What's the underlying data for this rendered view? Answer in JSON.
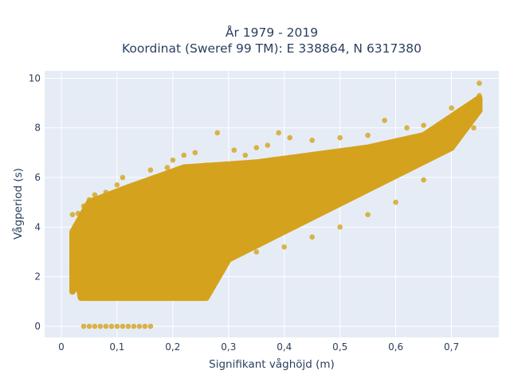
{
  "chart_data": {
    "type": "scatter",
    "title": [
      "År 1979 - 2019",
      "Koordinat (Sweref 99 TM): E 338864, N 6317380"
    ],
    "xlabel": "Signifikant våghöjd (m)",
    "ylabel": "Vågperiod (s)",
    "xlim": [
      -0.03,
      0.785
    ],
    "ylim": [
      -0.45,
      10.3
    ],
    "xticks": [
      0,
      0.1,
      0.2,
      0.3,
      0.4,
      0.5,
      0.6,
      0.7
    ],
    "xtick_labels": [
      "0",
      "0,1",
      "0,2",
      "0,3",
      "0,4",
      "0,5",
      "0,6",
      "0,7"
    ],
    "yticks": [
      0,
      2,
      4,
      6,
      8,
      10
    ],
    "ytick_labels": [
      "0",
      "2",
      "4",
      "6",
      "8",
      "10"
    ],
    "grid": true,
    "legend": "none",
    "series": [
      {
        "color": "#d4a21c",
        "points": [
          [
            0.04,
            0
          ],
          [
            0.05,
            0
          ],
          [
            0.06,
            0
          ],
          [
            0.07,
            0
          ],
          [
            0.08,
            0
          ],
          [
            0.09,
            0
          ],
          [
            0.1,
            0
          ],
          [
            0.11,
            0
          ],
          [
            0.12,
            0
          ],
          [
            0.13,
            0
          ],
          [
            0.14,
            0
          ],
          [
            0.15,
            0
          ],
          [
            0.16,
            0
          ],
          [
            0.02,
            4.5
          ],
          [
            0.03,
            4.55
          ],
          [
            0.04,
            4.85
          ],
          [
            0.05,
            5.1
          ],
          [
            0.06,
            5.3
          ],
          [
            0.08,
            5.4
          ],
          [
            0.1,
            5.7
          ],
          [
            0.11,
            6.0
          ],
          [
            0.16,
            6.3
          ],
          [
            0.19,
            6.4
          ],
          [
            0.2,
            6.7
          ],
          [
            0.22,
            6.9
          ],
          [
            0.24,
            7.0
          ],
          [
            0.26,
            6.5
          ],
          [
            0.28,
            7.8
          ],
          [
            0.31,
            7.1
          ],
          [
            0.33,
            6.9
          ],
          [
            0.35,
            7.2
          ],
          [
            0.37,
            7.3
          ],
          [
            0.39,
            7.8
          ],
          [
            0.41,
            7.6
          ],
          [
            0.45,
            7.5
          ],
          [
            0.5,
            7.6
          ],
          [
            0.55,
            7.7
          ],
          [
            0.58,
            8.3
          ],
          [
            0.62,
            8.0
          ],
          [
            0.65,
            8.1
          ],
          [
            0.7,
            8.8
          ],
          [
            0.75,
            9.8
          ],
          [
            0.02,
            2.2
          ],
          [
            0.03,
            1.8
          ],
          [
            0.04,
            1.3
          ],
          [
            0.06,
            1.2
          ],
          [
            0.1,
            1.15
          ],
          [
            0.15,
            1.15
          ],
          [
            0.2,
            1.2
          ],
          [
            0.25,
            1.2
          ],
          [
            0.26,
            1.6
          ],
          [
            0.28,
            2.5
          ],
          [
            0.3,
            2.7
          ],
          [
            0.35,
            3.0
          ],
          [
            0.4,
            3.2
          ],
          [
            0.45,
            3.6
          ],
          [
            0.5,
            4.0
          ],
          [
            0.55,
            4.5
          ],
          [
            0.6,
            5.0
          ],
          [
            0.65,
            5.9
          ],
          [
            0.7,
            7.2
          ],
          [
            0.74,
            8.0
          ],
          [
            0.75,
            9.3
          ]
        ]
      }
    ]
  }
}
